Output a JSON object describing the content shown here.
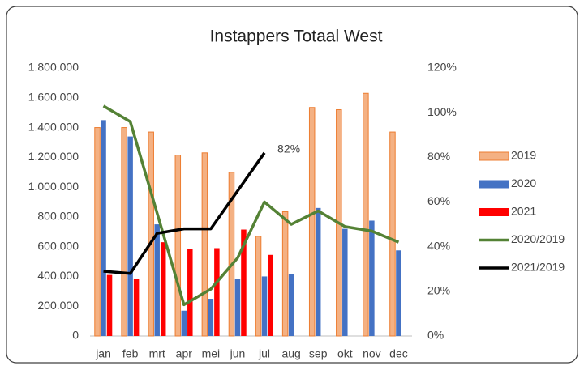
{
  "chart_data": {
    "type": "bar_line",
    "title": "Instappers Totaal West",
    "categories": [
      "jan",
      "feb",
      "mrt",
      "apr",
      "mei",
      "jun",
      "jul",
      "aug",
      "sep",
      "okt",
      "nov",
      "dec"
    ],
    "series": [
      {
        "name": "2019",
        "type": "bar",
        "color": "#f4b183",
        "edge": "#ed7d31",
        "values": [
          1400000,
          1400000,
          1370000,
          1215000,
          1230000,
          1100000,
          670000,
          835000,
          1535000,
          1520000,
          1630000,
          1370000
        ]
      },
      {
        "name": "2020",
        "type": "bar",
        "color": "#4472c4",
        "values": [
          1450000,
          1340000,
          750000,
          170000,
          250000,
          385000,
          400000,
          415000,
          860000,
          720000,
          775000,
          575000
        ]
      },
      {
        "name": "2021",
        "type": "bar",
        "color": "#ff0000",
        "values": [
          410000,
          385000,
          630000,
          585000,
          590000,
          715000,
          545000,
          null,
          null,
          null,
          null,
          null
        ]
      },
      {
        "name": "2020/2019",
        "type": "line",
        "axis": "y2",
        "color": "#548235",
        "values": [
          103,
          96,
          55,
          14,
          21,
          35,
          60,
          50,
          56,
          49,
          47,
          42
        ]
      },
      {
        "name": "2021/2019",
        "type": "line",
        "axis": "y2",
        "color": "#000000",
        "values": [
          29,
          28,
          46,
          48,
          48,
          65,
          82,
          null,
          null,
          null,
          null,
          null
        ],
        "value_labels": [
          null,
          null,
          null,
          null,
          null,
          null,
          "82%",
          null,
          null,
          null,
          null,
          null
        ]
      }
    ],
    "ylim": [
      0,
      1800000
    ],
    "yticks": [
      0,
      {
        "value": 200000,
        "label": "200.000"
      },
      {
        "value": 400000,
        "label": "400.000"
      },
      {
        "value": 600000,
        "label": "600.000"
      },
      {
        "value": 800000,
        "label": "800.000"
      },
      {
        "value": 1000000,
        "label": "1.000.000"
      },
      {
        "value": 1200000,
        "label": "1.200.000"
      },
      {
        "value": 1400000,
        "label": "1.400.000"
      },
      {
        "value": 1600000,
        "label": "1.600.000"
      },
      {
        "value": 1800000,
        "label": "1.800.000"
      }
    ],
    "y2lim": [
      0,
      120
    ],
    "y2ticks": [
      {
        "value": 0,
        "label": "0%"
      },
      {
        "value": 20,
        "label": "20%"
      },
      {
        "value": 40,
        "label": "40%"
      },
      {
        "value": 60,
        "label": "60%"
      },
      {
        "value": 80,
        "label": "80%"
      },
      {
        "value": 100,
        "label": "100%"
      },
      {
        "value": 120,
        "label": "120%"
      }
    ],
    "grid": false,
    "legend": "right"
  }
}
